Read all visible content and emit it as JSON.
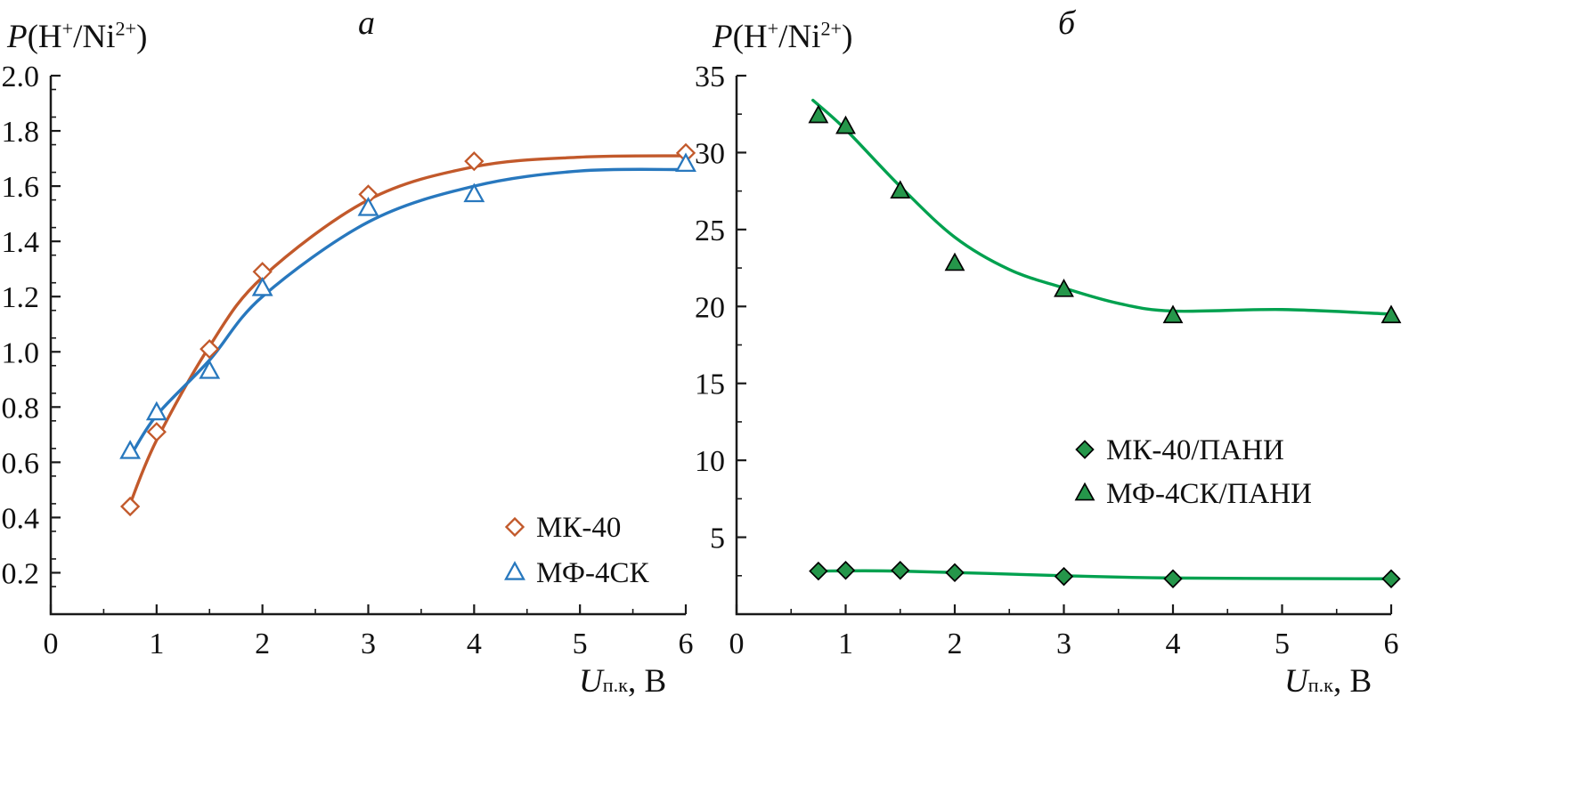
{
  "figure": {
    "background": "#ffffff",
    "axis_color": "#1a1a1a",
    "text_color": "#111111"
  },
  "chart_data": [
    {
      "type": "scatter",
      "panel_label": "a",
      "ylabel_segments": [
        {
          "t": "P",
          "italic": true
        },
        {
          "t": "(H"
        },
        {
          "t": "+",
          "sup": true
        },
        {
          "t": "/Ni"
        },
        {
          "t": "2+",
          "sup": true
        },
        {
          "t": ")"
        }
      ],
      "xlabel_segments": [
        {
          "t": "U",
          "italic": true
        },
        {
          "t": "п.к",
          "sub": true
        },
        {
          "t": ", В"
        }
      ],
      "xlim": [
        0,
        6
      ],
      "ylim": [
        0.05,
        2.0
      ],
      "x_tick_values": [
        0,
        1,
        2,
        3,
        4,
        5,
        6
      ],
      "x_tick_labels": [
        "0",
        "1",
        "2",
        "3",
        "4",
        "5",
        "6"
      ],
      "y_tick_values": [
        0.2,
        0.4,
        0.6,
        0.8,
        1.0,
        1.2,
        1.4,
        1.6,
        1.8,
        2.0
      ],
      "y_tick_labels": [
        "0.2",
        "0.4",
        "0.6",
        "0.8",
        "1.0",
        "1.2",
        "1.4",
        "1.6",
        "1.8",
        "2.0"
      ],
      "grid": false,
      "legend_position": "lower-right-inside",
      "series": [
        {
          "name": "МК-40",
          "marker": "diamond",
          "fill_style": "open",
          "color": "#c2592b",
          "marker_fill": "#ffffff",
          "points": [
            [
              0.75,
              0.44
            ],
            [
              1,
              0.71
            ],
            [
              1.5,
              1.01
            ],
            [
              2,
              1.29
            ],
            [
              3,
              1.57
            ],
            [
              4,
              1.69
            ],
            [
              6,
              1.72
            ]
          ],
          "curve": [
            [
              0.75,
              0.45
            ],
            [
              1,
              0.68
            ],
            [
              1.5,
              1.02
            ],
            [
              2,
              1.27
            ],
            [
              3,
              1.55
            ],
            [
              4,
              1.67
            ],
            [
              5,
              1.705
            ],
            [
              6,
              1.71
            ]
          ]
        },
        {
          "name": "МФ-4СК",
          "marker": "triangle",
          "fill_style": "open",
          "color": "#2878be",
          "marker_fill": "#ffffff",
          "points": [
            [
              0.75,
              0.64
            ],
            [
              1,
              0.78
            ],
            [
              1.5,
              0.93
            ],
            [
              2,
              1.23
            ],
            [
              3,
              1.52
            ],
            [
              4,
              1.57
            ],
            [
              6,
              1.68
            ]
          ],
          "curve": [
            [
              0.75,
              0.62
            ],
            [
              1,
              0.77
            ],
            [
              1.5,
              0.97
            ],
            [
              2,
              1.2
            ],
            [
              3,
              1.47
            ],
            [
              4,
              1.6
            ],
            [
              5,
              1.655
            ],
            [
              6,
              1.66
            ]
          ]
        }
      ]
    },
    {
      "type": "scatter",
      "panel_label": "б",
      "ylabel_segments": [
        {
          "t": "P",
          "italic": true
        },
        {
          "t": "(H"
        },
        {
          "t": "+",
          "sup": true
        },
        {
          "t": "/Ni"
        },
        {
          "t": "2+",
          "sup": true
        },
        {
          "t": ")"
        }
      ],
      "xlabel_segments": [
        {
          "t": "U",
          "italic": true
        },
        {
          "t": "п.к",
          "sub": true
        },
        {
          "t": ", В"
        }
      ],
      "xlim": [
        0,
        6
      ],
      "ylim": [
        0,
        35
      ],
      "x_tick_values": [
        0,
        1,
        2,
        3,
        4,
        5,
        6
      ],
      "x_tick_labels": [
        "0",
        "1",
        "2",
        "3",
        "4",
        "5",
        "6"
      ],
      "y_tick_values": [
        5,
        10,
        15,
        20,
        25,
        30,
        35
      ],
      "y_tick_labels": [
        "5",
        "10",
        "15",
        "20",
        "25",
        "30",
        "35"
      ],
      "grid": false,
      "legend_position": "middle-right-inside",
      "series": [
        {
          "name": "МК-40/ПАНИ",
          "marker": "diamond",
          "fill_style": "solid",
          "color": "#00a14f",
          "marker_fill": "#25964a",
          "points": [
            [
              0.75,
              2.8
            ],
            [
              1,
              2.85
            ],
            [
              1.5,
              2.85
            ],
            [
              2,
              2.7
            ],
            [
              3,
              2.45
            ],
            [
              4,
              2.3
            ],
            [
              6,
              2.3
            ]
          ],
          "curve": [
            [
              0.75,
              2.8
            ],
            [
              1.5,
              2.8
            ],
            [
              3,
              2.5
            ],
            [
              4,
              2.35
            ],
            [
              6,
              2.3
            ]
          ]
        },
        {
          "name": "МФ-4СК/ПАНИ",
          "marker": "triangle",
          "fill_style": "solid",
          "color": "#00a14f",
          "marker_fill": "#25964a",
          "points": [
            [
              0.75,
              32.4
            ],
            [
              1,
              31.7
            ],
            [
              1.5,
              27.5
            ],
            [
              2,
              22.8
            ],
            [
              3,
              21.1
            ],
            [
              4,
              19.4
            ],
            [
              6,
              19.4
            ]
          ],
          "curve": [
            [
              0.7,
              33.4
            ],
            [
              1,
              31.5
            ],
            [
              1.5,
              27.8
            ],
            [
              2,
              24.5
            ],
            [
              2.5,
              22.4
            ],
            [
              3,
              21.2
            ],
            [
              3.5,
              20.2
            ],
            [
              4,
              19.7
            ],
            [
              5,
              19.8
            ],
            [
              6,
              19.5
            ]
          ]
        }
      ]
    }
  ]
}
